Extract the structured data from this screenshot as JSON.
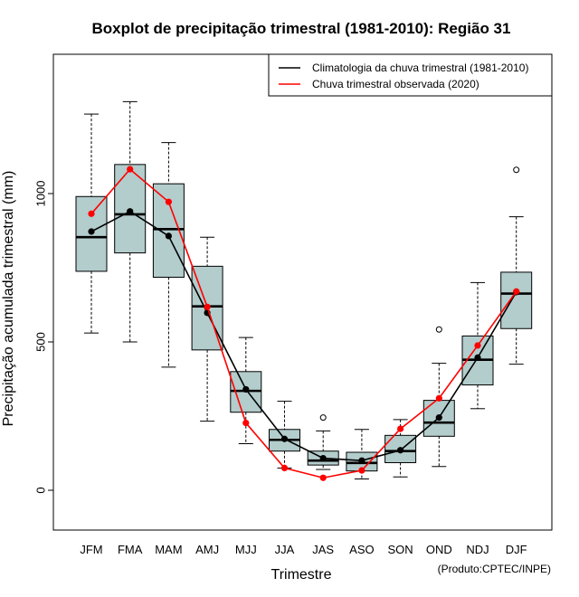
{
  "chart_data": {
    "type": "boxplot",
    "title": "Boxplot de precipitação trimestral (1981-2010): Região 31",
    "xlabel": "Trimestre",
    "ylabel": "Precipitação acumulada trimestral (mm)",
    "ylim": [
      -130,
      1460
    ],
    "yticks": [
      0,
      500,
      1000
    ],
    "categories": [
      "JFM",
      "FMA",
      "MAM",
      "AMJ",
      "MJJ",
      "JJA",
      "JAS",
      "ASO",
      "SON",
      "OND",
      "NDJ",
      "DJF"
    ],
    "boxes": [
      {
        "low": 530,
        "q1": 738,
        "median": 853,
        "q3": 990,
        "high": 1268,
        "outliers": []
      },
      {
        "low": 500,
        "q1": 800,
        "median": 930,
        "q3": 1098,
        "high": 1310,
        "outliers": []
      },
      {
        "low": 415,
        "q1": 718,
        "median": 880,
        "q3": 1033,
        "high": 1172,
        "outliers": []
      },
      {
        "low": 233,
        "q1": 473,
        "median": 620,
        "q3": 755,
        "high": 853,
        "outliers": []
      },
      {
        "low": 157,
        "q1": 263,
        "median": 335,
        "q3": 400,
        "high": 515,
        "outliers": []
      },
      {
        "low": 75,
        "q1": 132,
        "median": 170,
        "q3": 205,
        "high": 300,
        "outliers": []
      },
      {
        "low": 70,
        "q1": 85,
        "median": 100,
        "q3": 132,
        "high": 200,
        "outliers": [
          245
        ]
      },
      {
        "low": 38,
        "q1": 65,
        "median": 92,
        "q3": 128,
        "high": 205,
        "outliers": []
      },
      {
        "low": 45,
        "q1": 93,
        "median": 132,
        "q3": 185,
        "high": 238,
        "outliers": []
      },
      {
        "low": 80,
        "q1": 182,
        "median": 228,
        "q3": 303,
        "high": 428,
        "outliers": [
          542
        ]
      },
      {
        "low": 275,
        "q1": 355,
        "median": 440,
        "q3": 520,
        "high": 700,
        "outliers": []
      },
      {
        "low": 425,
        "q1": 545,
        "median": 663,
        "q3": 735,
        "high": 922,
        "outliers": [
          1080
        ]
      }
    ],
    "series": [
      {
        "name": "Climatologia da chuva trimestral (1981-2010)",
        "color": "#000000",
        "values": [
          872,
          940,
          857,
          598,
          340,
          173,
          108,
          100,
          135,
          245,
          447,
          668
        ]
      },
      {
        "name": "Chuva trimestral observada (2020)",
        "color": "#ff0000",
        "values": [
          932,
          1082,
          972,
          618,
          227,
          75,
          42,
          67,
          207,
          310,
          488,
          670
        ]
      }
    ],
    "legend_position": "top-right",
    "box_fill": "#b3cccc",
    "credit": "(Produto:CPTEC/INPE)"
  }
}
